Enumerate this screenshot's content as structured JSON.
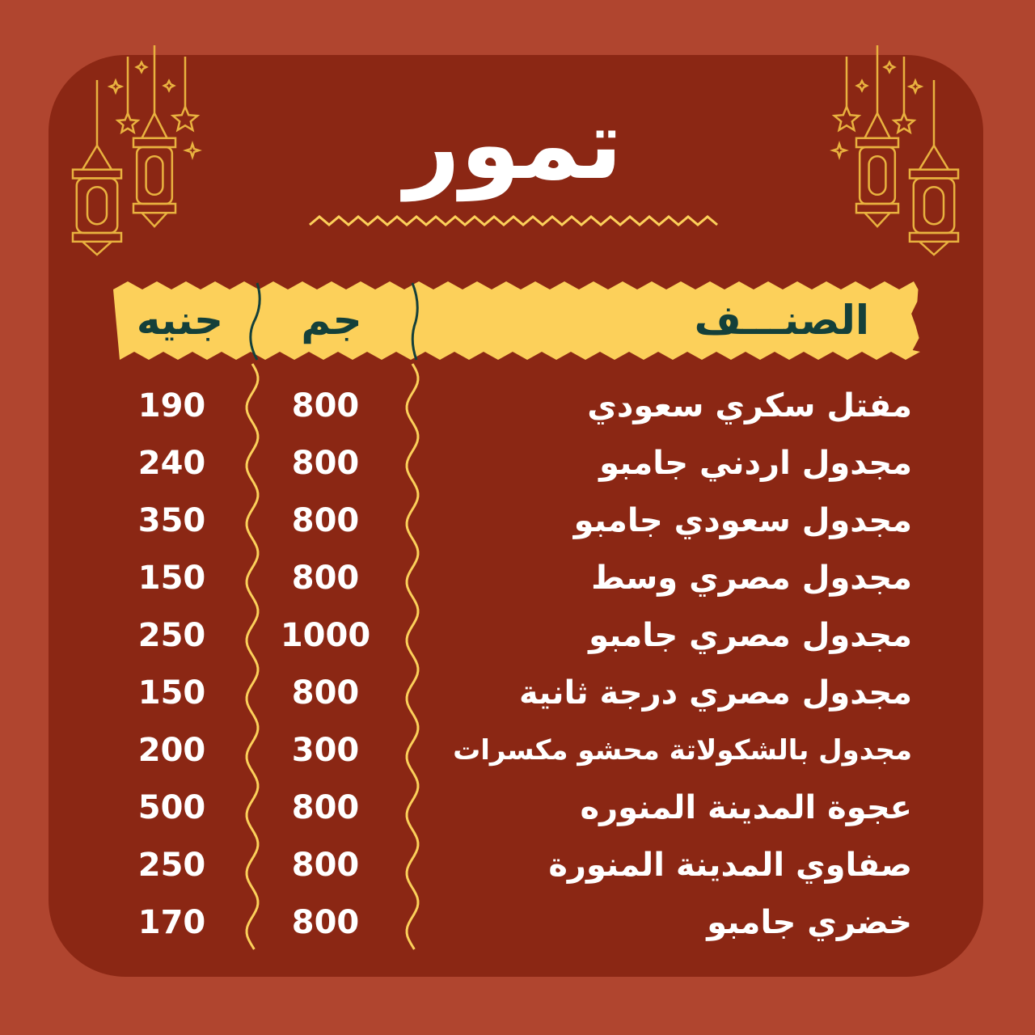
{
  "title": "تمور",
  "colors": {
    "background": "#b0452f",
    "card": "#8b2714",
    "accent": "#fcd05a",
    "header_text": "#14403a",
    "text": "#ffffff"
  },
  "header": {
    "item": "الصنـــف",
    "grams": "جم",
    "price": "جنيه"
  },
  "items": [
    {
      "name": "مفتل سكري سعودي",
      "grams": "800",
      "price": "190"
    },
    {
      "name": "مجدول اردني جامبو",
      "grams": "800",
      "price": "240"
    },
    {
      "name": "مجدول سعودي جامبو",
      "grams": "800",
      "price": "350"
    },
    {
      "name": "مجدول مصري وسط",
      "grams": "800",
      "price": "150"
    },
    {
      "name": "مجدول مصري جامبو",
      "grams": "1000",
      "price": "250"
    },
    {
      "name": "مجدول مصري درجة ثانية",
      "grams": "800",
      "price": "150"
    },
    {
      "name": "مجدول بالشكولاتة محشو مكسرات",
      "grams": "300",
      "price": "200"
    },
    {
      "name": "عجوة المدينة المنوره",
      "grams": "800",
      "price": "500"
    },
    {
      "name": "صفاوي المدينة المنورة",
      "grams": "800",
      "price": "250"
    },
    {
      "name": "خضري جامبو",
      "grams": "800",
      "price": "170"
    }
  ],
  "icons": [
    "lantern-icon",
    "star-icon",
    "sparkle-icon"
  ]
}
